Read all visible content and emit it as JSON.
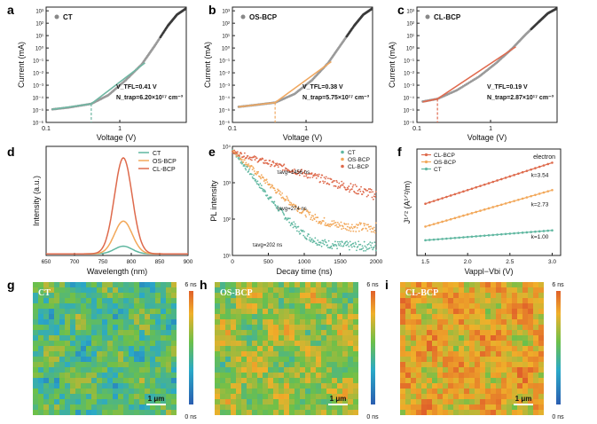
{
  "figure": {
    "panel_letters": [
      "a",
      "b",
      "c",
      "d",
      "e",
      "f",
      "g",
      "h",
      "i"
    ]
  },
  "chart_data": [
    {
      "panel": "a",
      "type": "line",
      "xlabel": "Voltage (V)",
      "ylabel": "Current (mA)",
      "xscale": "log",
      "yscale": "log",
      "xticks": [
        "0.1",
        "1"
      ],
      "yticks": [
        "10⁻⁶",
        "10⁻⁵",
        "10⁻⁴",
        "10⁻³",
        "10⁻²",
        "10⁻¹",
        "10⁰",
        "10¹",
        "10²",
        "10³"
      ],
      "xlim": [
        0.1,
        8
      ],
      "ylim": [
        -6,
        3.3
      ],
      "legend": [
        "CT"
      ],
      "legend_position": "top-left",
      "series": [
        {
          "name": "CT",
          "color": "#6b6b6b",
          "fit_color": "#6fb7a3",
          "points": [
            [
              0.1,
              -5.0
            ],
            [
              0.2,
              -4.8
            ],
            [
              0.41,
              -4.5
            ],
            [
              0.7,
              -3.8
            ],
            [
              1.2,
              -2.6
            ],
            [
              2,
              -1.3
            ],
            [
              3,
              0.2
            ],
            [
              4.5,
              1.8
            ],
            [
              6,
              2.7
            ],
            [
              8,
              3.2
            ]
          ]
        }
      ],
      "annotations": [
        {
          "text": "V_TFL=0.41 V"
        },
        {
          "text": "N_trap=6.20×10¹⁷ cm⁻³"
        }
      ],
      "vtfl": 0.41
    },
    {
      "panel": "b",
      "type": "line",
      "xlabel": "Voltage (V)",
      "ylabel": "Current (mA)",
      "xscale": "log",
      "yscale": "log",
      "xticks": [
        "0.1",
        "1"
      ],
      "yticks": [
        "10⁻⁶",
        "10⁻⁵",
        "10⁻⁴",
        "10⁻³",
        "10⁻²",
        "10⁻¹",
        "10⁰",
        "10¹",
        "10²",
        "10³"
      ],
      "xlim": [
        0.1,
        8
      ],
      "ylim": [
        -6,
        3.3
      ],
      "legend": [
        "OS-BCP"
      ],
      "legend_position": "top-left",
      "series": [
        {
          "name": "OS-BCP",
          "color": "#6b6b6b",
          "fit_color": "#f0a860",
          "points": [
            [
              0.1,
              -4.8
            ],
            [
              0.2,
              -4.6
            ],
            [
              0.38,
              -4.4
            ],
            [
              0.7,
              -3.7
            ],
            [
              1.2,
              -2.6
            ],
            [
              2,
              -1.2
            ],
            [
              3,
              0.3
            ],
            [
              4.5,
              1.8
            ],
            [
              6,
              2.7
            ],
            [
              8,
              3.2
            ]
          ]
        }
      ],
      "annotations": [
        {
          "text": "V_TFL=0.38 V"
        },
        {
          "text": "N_trap=5.75×10¹⁷ cm⁻³"
        }
      ],
      "vtfl": 0.38
    },
    {
      "panel": "c",
      "type": "line",
      "xlabel": "Voltage (V)",
      "ylabel": "Current (mA)",
      "xscale": "log",
      "yscale": "log",
      "xticks": [
        "0.1",
        "1"
      ],
      "yticks": [
        "10⁻⁶",
        "10⁻⁵",
        "10⁻⁴",
        "10⁻³",
        "10⁻²",
        "10⁻¹",
        "10⁰",
        "10¹",
        "10²",
        "10³"
      ],
      "xlim": [
        0.1,
        8
      ],
      "ylim": [
        -6,
        3.3
      ],
      "legend": [
        "CL-BCP"
      ],
      "legend_position": "top-left",
      "series": [
        {
          "name": "CL-BCP",
          "color": "#6b6b6b",
          "fit_color": "#e06a4e",
          "points": [
            [
              0.1,
              -4.4
            ],
            [
              0.19,
              -4.1
            ],
            [
              0.35,
              -3.4
            ],
            [
              0.7,
              -2.3
            ],
            [
              1.2,
              -1.2
            ],
            [
              2,
              0.0
            ],
            [
              3,
              1.1
            ],
            [
              4.5,
              2.1
            ],
            [
              6,
              2.8
            ],
            [
              8,
              3.2
            ]
          ]
        }
      ],
      "annotations": [
        {
          "text": "V_TFL=0.19 V"
        },
        {
          "text": "N_trap=2.87×10¹⁷ cm⁻³"
        }
      ],
      "vtfl": 0.19
    },
    {
      "panel": "d",
      "type": "line",
      "xlabel": "Wavelength (nm)",
      "ylabel": "Intensity (a.u.)",
      "xlim": [
        650,
        900
      ],
      "xticks": [
        "650",
        "700",
        "750",
        "800",
        "850",
        "900"
      ],
      "legend": [
        "CT",
        "OS-BCP",
        "CL-BCP"
      ],
      "legend_position": "top-right",
      "series": [
        {
          "name": "CT",
          "color": "#5fb7a0",
          "peak": 786,
          "amplitude": 0.07,
          "width": 22
        },
        {
          "name": "OS-BCP",
          "color": "#f2a85a",
          "peak": 786,
          "amplitude": 0.3,
          "width": 22
        },
        {
          "name": "CL-BCP",
          "color": "#de6a4c",
          "peak": 786,
          "amplitude": 0.88,
          "width": 22
        }
      ]
    },
    {
      "panel": "e",
      "type": "scatter",
      "xlabel": "Decay time (ns)",
      "ylabel": "PL intensity",
      "xlim": [
        0,
        2000
      ],
      "xticks": [
        "0",
        "500",
        "1000",
        "1500",
        "2000"
      ],
      "yscale": "log",
      "yticks": [
        "10¹",
        "10²",
        "10³",
        "10⁴"
      ],
      "ylim": [
        1,
        4
      ],
      "legend": [
        "CT",
        "OS-BCP",
        "CL-BCP"
      ],
      "legend_position": "top-right",
      "series": [
        {
          "name": "CT",
          "color": "#5fb7a0",
          "tau_label": "τavg=202 ns",
          "tau": 202
        },
        {
          "name": "OS-BCP",
          "color": "#f2a85a",
          "tau_label": "τavg=274 ns",
          "tau": 274
        },
        {
          "name": "CL-BCP",
          "color": "#de6a4c",
          "tau_label": "τavg=1456 ns",
          "tau": 1456
        }
      ]
    },
    {
      "panel": "f",
      "type": "line",
      "xlabel": "Vappl−Vbi (V)",
      "ylabel": "J¹ᐟ² (A¹ᐟ²/m)",
      "xlim": [
        1.4,
        3.1
      ],
      "xticks": [
        "1.5",
        "2.0",
        "2.5",
        "3.0"
      ],
      "title_note": "electron",
      "legend": [
        "CL-BCP",
        "OS-BCP",
        "CT"
      ],
      "legend_position": "top-left",
      "series": [
        {
          "name": "CL-BCP",
          "color": "#de6a4c",
          "slope_label": "k=3.54",
          "x": [
            1.5,
            3.0
          ],
          "y": [
            10.8,
            16.2
          ]
        },
        {
          "name": "OS-BCP",
          "color": "#f2a85a",
          "slope_label": "k=2.73",
          "x": [
            1.5,
            3.0
          ],
          "y": [
            7.8,
            12.6
          ]
        },
        {
          "name": "CT",
          "color": "#5fb7a0",
          "slope_label": "k=1.00",
          "x": [
            1.5,
            3.0
          ],
          "y": [
            6.0,
            7.3
          ]
        }
      ]
    },
    {
      "panel": "g",
      "type": "heatmap",
      "label": "CT",
      "colorbar": {
        "max": "6 ns",
        "min": "0 ns"
      },
      "scalebar": "1 μm",
      "mean_level": 0.42
    },
    {
      "panel": "h",
      "type": "heatmap",
      "label": "OS-BCP",
      "colorbar": {
        "max": "6 ns",
        "min": "0 ns"
      },
      "scalebar": "1 μm",
      "mean_level": 0.58
    },
    {
      "panel": "i",
      "type": "heatmap",
      "label": "CL-BCP",
      "colorbar": {
        "max": "6 ns",
        "min": "0 ns"
      },
      "scalebar": "1 μm",
      "mean_level": 0.76
    }
  ]
}
